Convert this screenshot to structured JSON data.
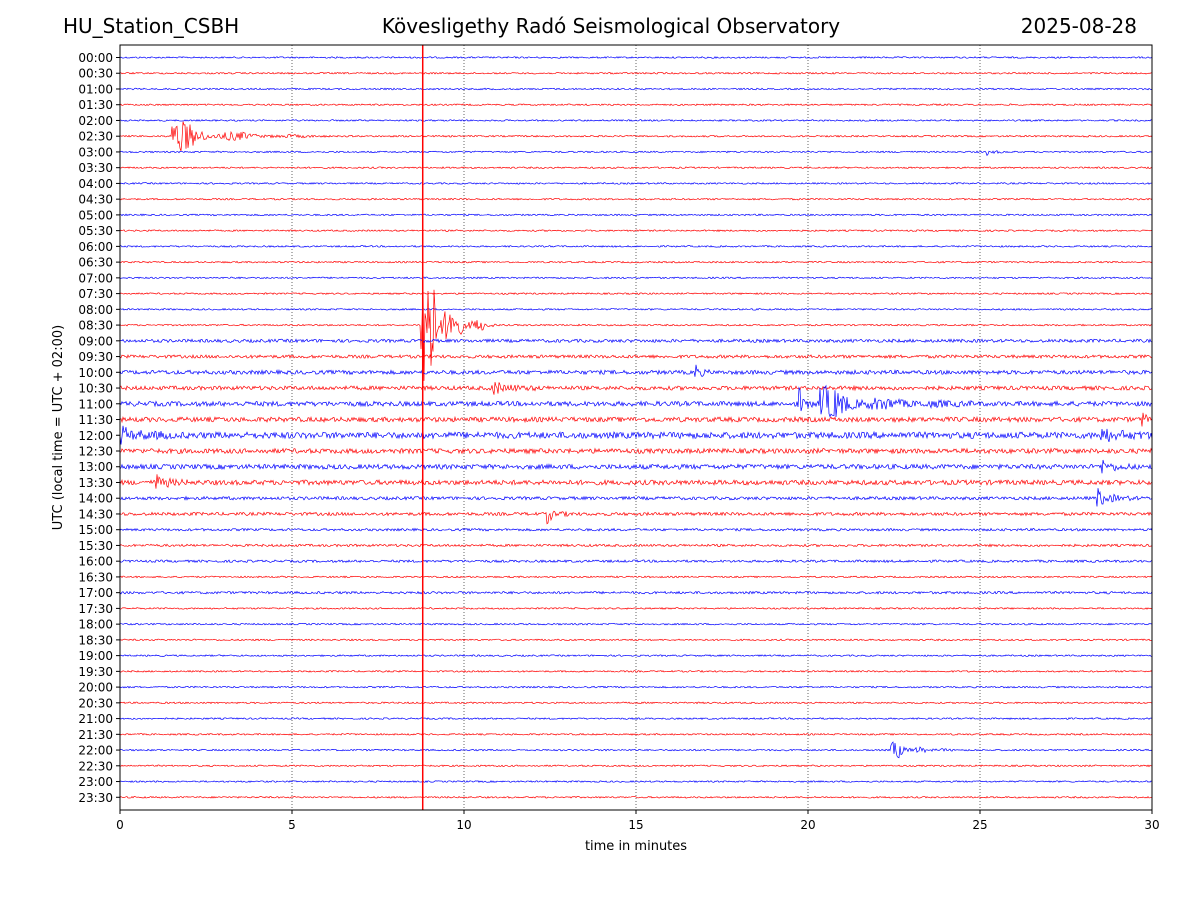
{
  "header": {
    "station": "HU_Station_CSBH",
    "observatory": "Kövesligethy Radó Seismological Observatory",
    "date": "2025-08-28"
  },
  "chart_data": {
    "type": "line",
    "title": "Kövesligethy Radó Seismological Observatory",
    "xlabel": "time in minutes",
    "ylabel": "UTC (local time = UTC + 02:00)",
    "xlim": [
      0,
      30
    ],
    "x_ticks": [
      0,
      5,
      10,
      15,
      20,
      25,
      30
    ],
    "grid": "vertical dotted at 5-minute ticks",
    "line_colors": [
      "#0000ff",
      "#ff0000"
    ],
    "row_labels": [
      "00:00",
      "00:30",
      "01:00",
      "01:30",
      "02:00",
      "02:30",
      "03:00",
      "03:30",
      "04:00",
      "04:30",
      "05:00",
      "05:30",
      "06:00",
      "06:30",
      "07:00",
      "07:30",
      "08:00",
      "08:30",
      "09:00",
      "09:30",
      "10:00",
      "10:30",
      "11:00",
      "11:30",
      "12:00",
      "12:30",
      "13:00",
      "13:30",
      "14:00",
      "14:30",
      "15:00",
      "15:30",
      "16:00",
      "16:30",
      "17:00",
      "17:30",
      "18:00",
      "18:30",
      "19:00",
      "19:30",
      "20:00",
      "20:30",
      "21:00",
      "21:30",
      "22:00",
      "22:30",
      "23:00",
      "23:30"
    ],
    "noise_level": [
      1,
      1,
      1,
      1,
      1,
      1,
      1,
      1,
      1,
      1,
      1,
      1,
      1,
      1,
      1,
      1,
      1,
      1,
      2,
      2,
      2.5,
      2.5,
      3,
      3,
      4,
      3,
      3,
      3,
      2,
      2,
      1.5,
      1.5,
      1.5,
      1,
      1.5,
      1,
      1,
      1,
      1,
      1,
      1,
      1,
      1,
      1,
      1,
      1,
      1,
      1
    ],
    "events": [
      {
        "row": "02:30",
        "start_min": 1.5,
        "amplitude": 20,
        "duration_min": 4.5
      },
      {
        "row": "03:00",
        "start_min": 25.2,
        "amplitude": 4,
        "duration_min": 0.6
      },
      {
        "row": "08:30",
        "start_min": 8.75,
        "amplitude": 120,
        "duration_min": 2.2
      },
      {
        "row": "10:00",
        "start_min": 16.7,
        "amplitude": 10,
        "duration_min": 0.5
      },
      {
        "row": "10:30",
        "start_min": 10.8,
        "amplitude": 8,
        "duration_min": 1.5
      },
      {
        "row": "11:00",
        "start_min": 19.7,
        "amplitude": 18,
        "duration_min": 0.7
      },
      {
        "row": "11:00",
        "start_min": 20.3,
        "amplitude": 20,
        "duration_min": 4.5
      },
      {
        "row": "11:30",
        "start_min": 29.7,
        "amplitude": 10,
        "duration_min": 0.3
      },
      {
        "row": "12:00",
        "start_min": 0.0,
        "amplitude": 8,
        "duration_min": 1.5
      },
      {
        "row": "12:00",
        "start_min": 28.5,
        "amplitude": 8,
        "duration_min": 1.5
      },
      {
        "row": "13:00",
        "start_min": 28.5,
        "amplitude": 7,
        "duration_min": 1.0
      },
      {
        "row": "13:30",
        "start_min": 1.0,
        "amplitude": 10,
        "duration_min": 1.0
      },
      {
        "row": "14:00",
        "start_min": 28.4,
        "amplitude": 12,
        "duration_min": 1.2
      },
      {
        "row": "14:30",
        "start_min": 12.4,
        "amplitude": 12,
        "duration_min": 0.8
      },
      {
        "row": "22:00",
        "start_min": 22.4,
        "amplitude": 12,
        "duration_min": 2.0
      }
    ],
    "vertical_line": {
      "x_min": 8.8,
      "color": "#ff0000"
    }
  }
}
